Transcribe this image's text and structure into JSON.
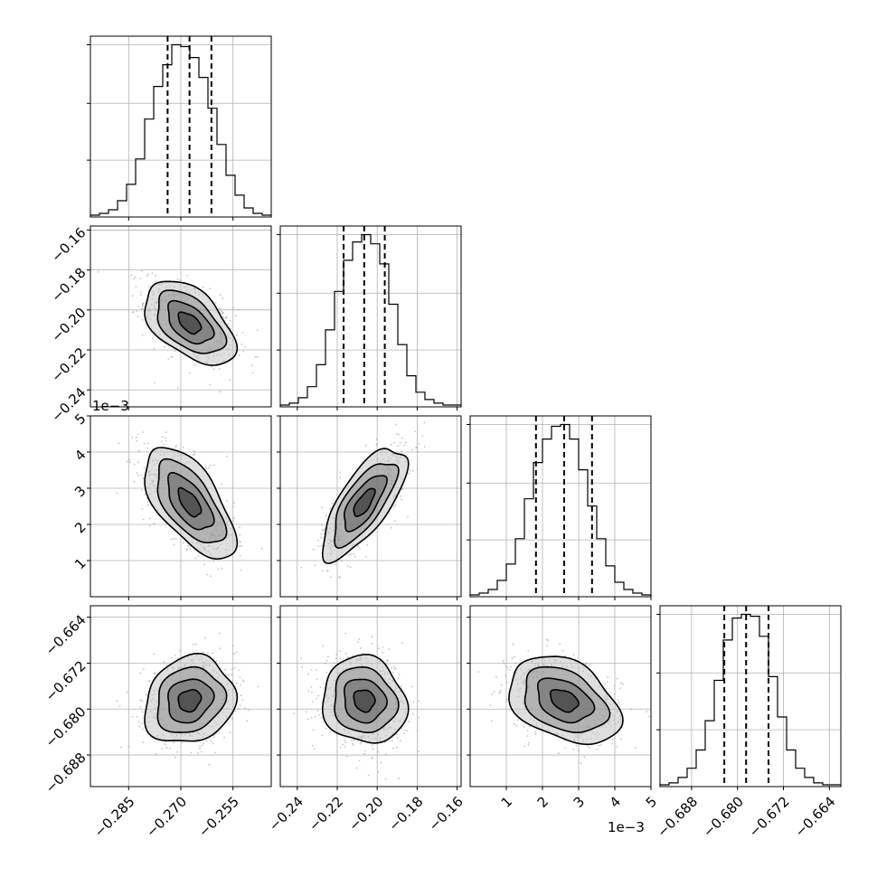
{
  "chart_data": {
    "type": "corner",
    "grid": true,
    "parameters": [
      {
        "index": 0,
        "range": [
          -0.296,
          -0.244
        ],
        "ticks": [
          -0.285,
          -0.27,
          -0.255
        ],
        "tick_labels": [
          "−0.285",
          "−0.270",
          "−0.255"
        ],
        "offset_label": "",
        "mean": -0.2675,
        "sigma": 0.0065,
        "quantiles": [
          -0.2738,
          -0.2675,
          -0.2612
        ],
        "hist_counts": [
          1,
          2,
          4,
          9,
          18,
          32,
          54,
          72,
          84,
          95,
          94,
          88,
          77,
          60,
          40,
          23,
          12,
          5,
          2,
          1
        ]
      },
      {
        "index": 1,
        "range": [
          -0.2485,
          -0.158
        ],
        "ticks": [
          -0.24,
          -0.22,
          -0.2,
          -0.18,
          -0.16
        ],
        "tick_labels": [
          "−0.24",
          "−0.22",
          "−0.20",
          "−0.18",
          "−0.16"
        ],
        "offset_label": "",
        "mean": -0.2065,
        "sigma": 0.0105,
        "quantiles": [
          -0.2168,
          -0.2065,
          -0.1962
        ],
        "hist_counts": [
          1,
          2,
          5,
          11,
          23,
          42,
          63,
          80,
          90,
          94,
          89,
          78,
          56,
          34,
          17,
          8,
          4,
          2,
          1,
          1
        ]
      },
      {
        "index": 2,
        "range": [
          0.0,
          0.005
        ],
        "ticks": [
          0.001,
          0.002,
          0.003,
          0.004,
          0.005
        ],
        "tick_labels": [
          "1",
          "2",
          "3",
          "4",
          "5"
        ],
        "offset_label": "1e−3",
        "mean": 0.0026,
        "sigma": 0.00077,
        "quantiles": [
          0.00182,
          0.0026,
          0.00337
        ],
        "hist_counts": [
          1,
          2,
          4,
          9,
          18,
          32,
          54,
          74,
          87,
          94,
          95,
          87,
          70,
          50,
          32,
          17,
          8,
          4,
          2,
          1
        ]
      },
      {
        "index": 3,
        "range": [
          -0.6935,
          -0.662
        ],
        "ticks": [
          -0.688,
          -0.68,
          -0.672,
          -0.664
        ],
        "tick_labels": [
          "−0.688",
          "−0.680",
          "−0.672",
          "−0.664"
        ],
        "offset_label": "",
        "mean": -0.6785,
        "sigma": 0.0038,
        "quantiles": [
          -0.6823,
          -0.6785,
          -0.6746
        ],
        "hist_counts": [
          1,
          2,
          5,
          10,
          20,
          36,
          58,
          80,
          92,
          94,
          93,
          82,
          60,
          38,
          20,
          10,
          5,
          2,
          1,
          1
        ]
      }
    ],
    "correlations": {
      "1,0": -0.5,
      "2,0": -0.62,
      "2,1": 0.72,
      "3,0": 0.15,
      "3,1": -0.1,
      "3,2": -0.35
    }
  }
}
